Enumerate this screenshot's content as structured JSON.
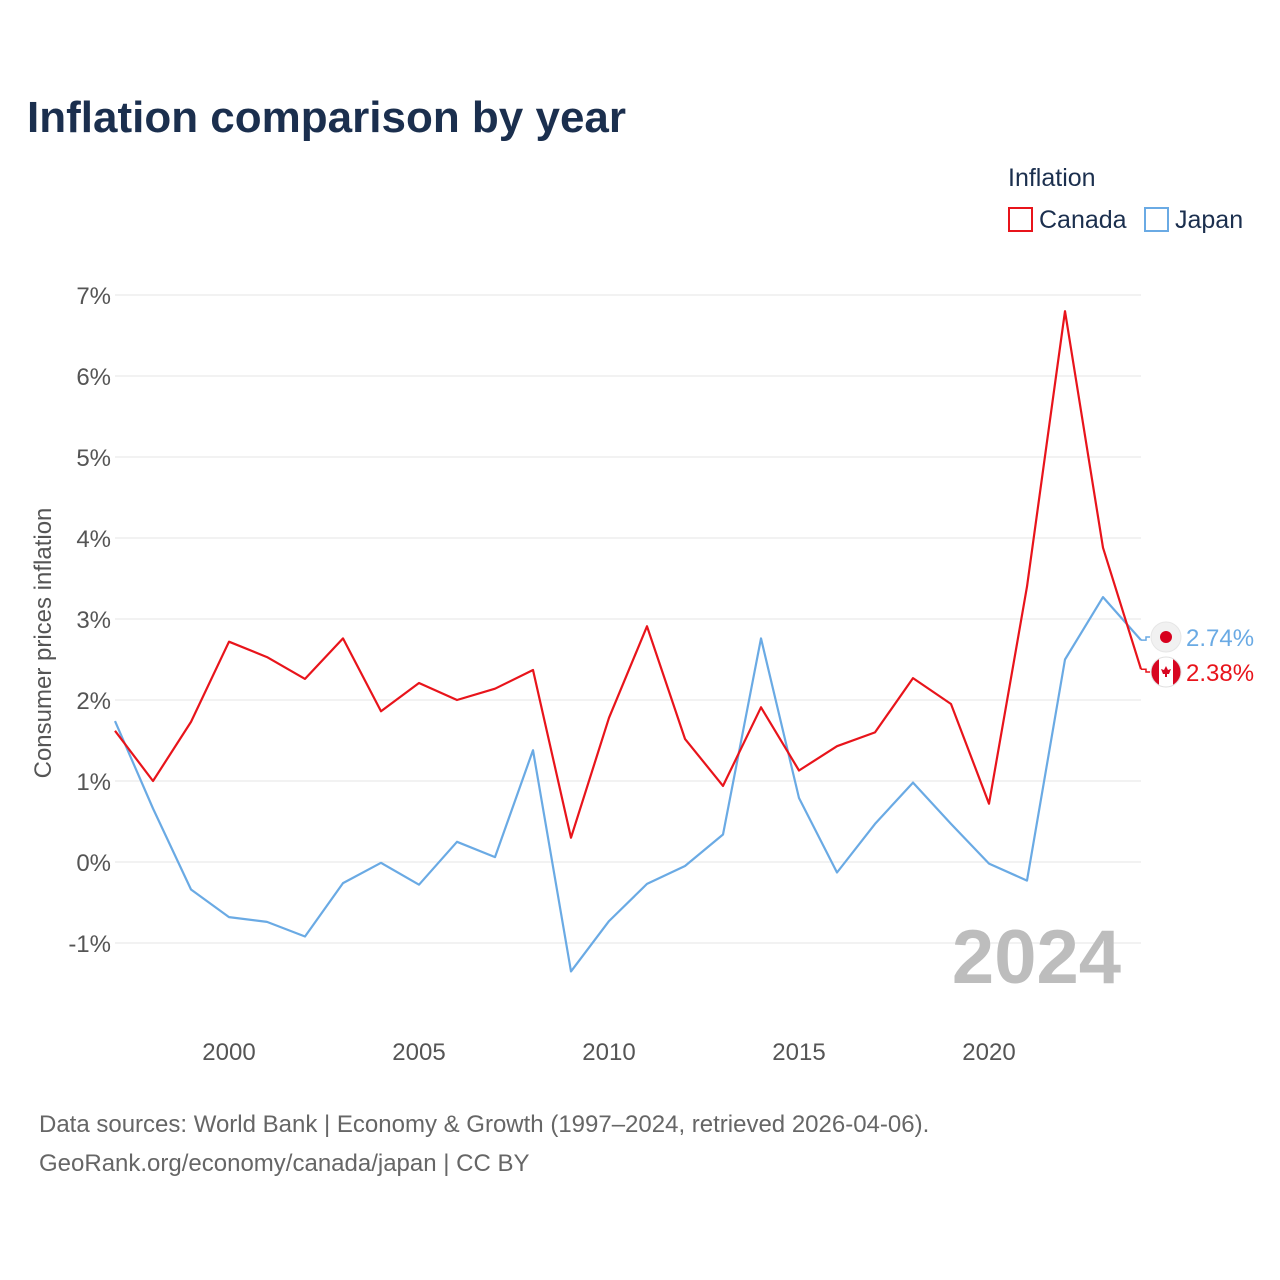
{
  "chart_data": {
    "type": "line",
    "title": "Inflation comparison by year",
    "ylabel": "Consumer prices inflation",
    "xlabel": "",
    "legend_title": "Inflation",
    "legend_position": "top-right",
    "grid": true,
    "ylim": [
      -1.6,
      7
    ],
    "xlim": [
      1997,
      2024
    ],
    "y_ticks": [
      -1,
      0,
      1,
      2,
      3,
      4,
      5,
      6,
      7
    ],
    "y_tick_labels": [
      "-1%",
      "0%",
      "1%",
      "2%",
      "3%",
      "4%",
      "5%",
      "6%",
      "7%"
    ],
    "x_ticks": [
      2000,
      2005,
      2010,
      2015,
      2020
    ],
    "x_tick_labels": [
      "2000",
      "2005",
      "2010",
      "2015",
      "2020"
    ],
    "x": [
      1997,
      1998,
      1999,
      2000,
      2001,
      2002,
      2003,
      2004,
      2005,
      2006,
      2007,
      2008,
      2009,
      2010,
      2011,
      2012,
      2013,
      2014,
      2015,
      2016,
      2017,
      2018,
      2019,
      2020,
      2021,
      2022,
      2023,
      2024
    ],
    "series": [
      {
        "name": "Canada",
        "color": "#e8141b",
        "flag": "canada-flag",
        "end_label": "2.38%",
        "values": [
          1.62,
          1.0,
          1.73,
          2.72,
          2.53,
          2.26,
          2.76,
          1.86,
          2.21,
          2.0,
          2.14,
          2.37,
          0.3,
          1.78,
          2.91,
          1.52,
          0.94,
          1.91,
          1.13,
          1.43,
          1.6,
          2.27,
          1.95,
          0.72,
          3.4,
          6.8,
          3.88,
          2.38
        ]
      },
      {
        "name": "Japan",
        "color": "#6aaae4",
        "flag": "japan-flag",
        "end_label": "2.74%",
        "values": [
          1.74,
          0.66,
          -0.34,
          -0.68,
          -0.74,
          -0.92,
          -0.26,
          -0.01,
          -0.28,
          0.25,
          0.06,
          1.38,
          -1.35,
          -0.73,
          -0.27,
          -0.05,
          0.34,
          2.76,
          0.79,
          -0.13,
          0.47,
          0.98,
          0.47,
          -0.02,
          -0.23,
          2.5,
          3.27,
          2.74
        ]
      }
    ],
    "watermark": "2024",
    "source_line1": "Data sources: World Bank | Economy & Growth (1997–2024, retrieved 2026-04-06).",
    "source_line2": "GeoRank.org/economy/canada/japan | CC BY"
  }
}
